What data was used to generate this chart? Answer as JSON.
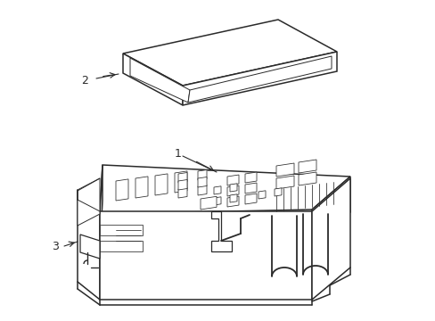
{
  "bg_color": "#ffffff",
  "lc": "#2a2a2a",
  "lw": 1.1,
  "tlw": 0.7,
  "flw": 0.55
}
